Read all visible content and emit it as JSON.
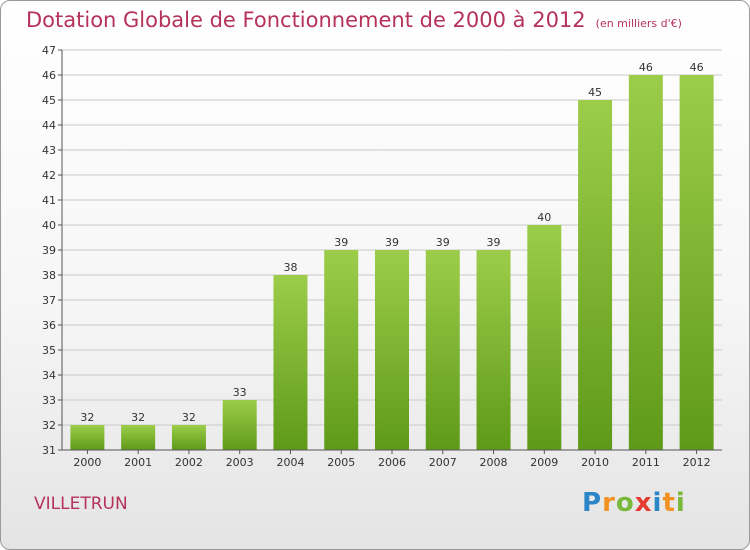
{
  "header": {
    "title": "Dotation Globale de Fonctionnement de 2000 à 2012",
    "subtitle": "(en milliers d'€)"
  },
  "footer": {
    "commune": "VILLETRUN",
    "logo": "Proxiti"
  },
  "colors": {
    "title": "#b5325a",
    "bar_top": "#9ccd4a",
    "bar_bottom": "#5e9a18"
  },
  "chart_data": {
    "type": "bar",
    "categories": [
      "2000",
      "2001",
      "2002",
      "2003",
      "2004",
      "2005",
      "2006",
      "2007",
      "2008",
      "2009",
      "2010",
      "2011",
      "2012"
    ],
    "values": [
      32,
      32,
      32,
      33,
      38,
      39,
      39,
      39,
      39,
      40,
      45,
      46,
      46
    ],
    "title": "Dotation Globale de Fonctionnement de 2000 à 2012",
    "subtitle": "(en milliers d'€)",
    "xlabel": "",
    "ylabel": "",
    "ylim": [
      31,
      47
    ],
    "yticks": [
      31,
      32,
      33,
      34,
      35,
      36,
      37,
      38,
      39,
      40,
      41,
      42,
      43,
      44,
      45,
      46,
      47
    ],
    "grid": true,
    "legend": "none"
  }
}
